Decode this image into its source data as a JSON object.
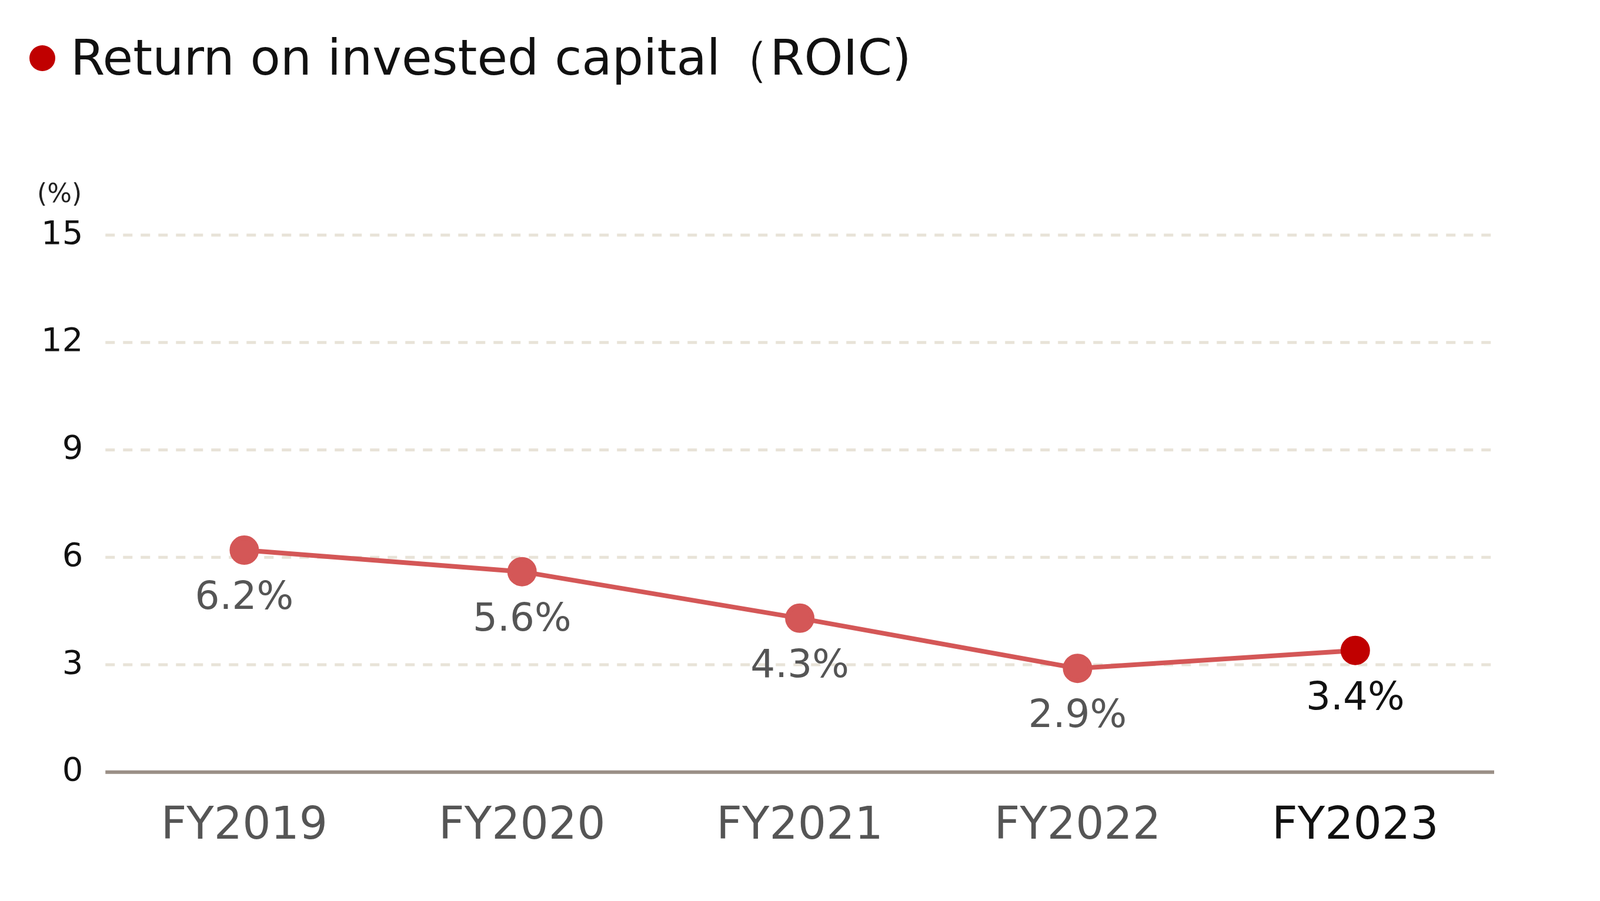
{
  "chart_data": {
    "type": "line",
    "title": "Return on invested capital（ROIC)",
    "y_label": "(%)",
    "categories": [
      "FY2019",
      "FY2020",
      "FY2021",
      "FY2022",
      "FY2023"
    ],
    "values": [
      6.2,
      5.6,
      4.3,
      2.9,
      3.4
    ],
    "value_labels": [
      "6.2%",
      "5.6%",
      "4.3%",
      "2.9%",
      "3.4%"
    ],
    "color": "#d45757",
    "colors": [
      "#d45757",
      "#d45757",
      "#d45757",
      "#d45757",
      "#c00000"
    ],
    "marker": "circle",
    "ylim": [
      0,
      15
    ],
    "yticks": [
      0,
      3,
      6,
      9,
      12,
      15
    ],
    "grid": true,
    "data_labels": true
  }
}
